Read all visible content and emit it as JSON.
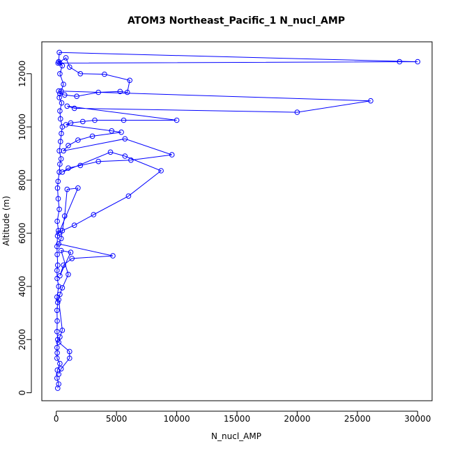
{
  "chart_data": {
    "type": "line",
    "title": "ATOM3 Northeast_Pacific_1 N_nucl_AMP",
    "xlabel": "N_nucl_AMP",
    "ylabel": "Altitude (m)",
    "xlim": [
      -1200,
      31200
    ],
    "ylim": [
      -300,
      13200
    ],
    "xticks": [
      0,
      5000,
      10000,
      15000,
      20000,
      25000,
      30000
    ],
    "yticks": [
      0,
      2000,
      4000,
      6000,
      8000,
      10000,
      12000
    ],
    "color": "#0000ff",
    "grid": false,
    "marker": "open-circle",
    "series": [
      {
        "points": [
          [
            120,
            170
          ],
          [
            200,
            330
          ],
          [
            60,
            550
          ],
          [
            90,
            850
          ],
          [
            300,
            1100
          ],
          [
            60,
            1300
          ],
          [
            80,
            1500
          ],
          [
            60,
            1700
          ],
          [
            120,
            2000
          ],
          [
            60,
            2300
          ],
          [
            80,
            2700
          ],
          [
            60,
            3100
          ],
          [
            120,
            3400
          ],
          [
            60,
            3600
          ],
          [
            200,
            4000
          ],
          [
            70,
            4300
          ],
          [
            60,
            4600
          ],
          [
            120,
            4800
          ],
          [
            80,
            5200
          ],
          [
            60,
            5500
          ],
          [
            100,
            5900
          ],
          [
            180,
            6100
          ],
          [
            80,
            6450
          ],
          [
            250,
            6900
          ],
          [
            160,
            7300
          ],
          [
            100,
            7700
          ],
          [
            150,
            7950
          ],
          [
            250,
            8300
          ],
          [
            300,
            8600
          ],
          [
            400,
            8800
          ],
          [
            250,
            9100
          ],
          [
            350,
            9450
          ],
          [
            420,
            9750
          ],
          [
            500,
            10000
          ],
          [
            350,
            10300
          ],
          [
            300,
            10600
          ],
          [
            450,
            10900
          ],
          [
            250,
            11100
          ],
          [
            400,
            11350
          ],
          [
            600,
            11600
          ],
          [
            300,
            12000
          ],
          [
            500,
            12300
          ],
          [
            200,
            12450
          ],
          [
            250,
            12800
          ],
          [
            30000,
            12450
          ],
          [
            28500,
            12450
          ],
          [
            300,
            12400
          ],
          [
            150,
            12400
          ],
          [
            800,
            12600
          ],
          [
            1100,
            12250
          ],
          [
            2000,
            12000
          ],
          [
            4000,
            11980
          ],
          [
            6100,
            11750
          ],
          [
            5900,
            11300
          ],
          [
            5300,
            11330
          ],
          [
            3500,
            11300
          ],
          [
            1700,
            11150
          ],
          [
            700,
            11200
          ],
          [
            300,
            11250
          ],
          [
            200,
            11350
          ],
          [
            26100,
            10980
          ],
          [
            20000,
            10550
          ],
          [
            1500,
            10700
          ],
          [
            900,
            10780
          ],
          [
            10000,
            10250
          ],
          [
            5600,
            10250
          ],
          [
            3200,
            10250
          ],
          [
            2200,
            10200
          ],
          [
            1200,
            10150
          ],
          [
            800,
            10080
          ],
          [
            4600,
            9850
          ],
          [
            5400,
            9800
          ],
          [
            3000,
            9650
          ],
          [
            1800,
            9500
          ],
          [
            1000,
            9300
          ],
          [
            600,
            9100
          ],
          [
            5700,
            9550
          ],
          [
            9600,
            8950
          ],
          [
            6200,
            8750
          ],
          [
            3500,
            8700
          ],
          [
            2000,
            8550
          ],
          [
            1000,
            8450
          ],
          [
            500,
            8300
          ],
          [
            4500,
            9050
          ],
          [
            5700,
            8900
          ],
          [
            8700,
            8350
          ],
          [
            6000,
            7400
          ],
          [
            3100,
            6700
          ],
          [
            1500,
            6300
          ],
          [
            500,
            6100
          ],
          [
            200,
            6000
          ],
          [
            1800,
            7700
          ],
          [
            900,
            7650
          ],
          [
            700,
            6650
          ],
          [
            400,
            5800
          ],
          [
            200,
            5600
          ],
          [
            4700,
            5150
          ],
          [
            1300,
            5050
          ],
          [
            600,
            4800
          ],
          [
            300,
            4400
          ],
          [
            1200,
            5280
          ],
          [
            400,
            5350
          ],
          [
            1000,
            4450
          ],
          [
            500,
            3950
          ],
          [
            300,
            3700
          ],
          [
            200,
            3500
          ],
          [
            500,
            2350
          ],
          [
            300,
            2100
          ],
          [
            200,
            1900
          ],
          [
            1100,
            1550
          ],
          [
            1100,
            1300
          ],
          [
            400,
            900
          ],
          [
            200,
            700
          ]
        ]
      }
    ]
  }
}
